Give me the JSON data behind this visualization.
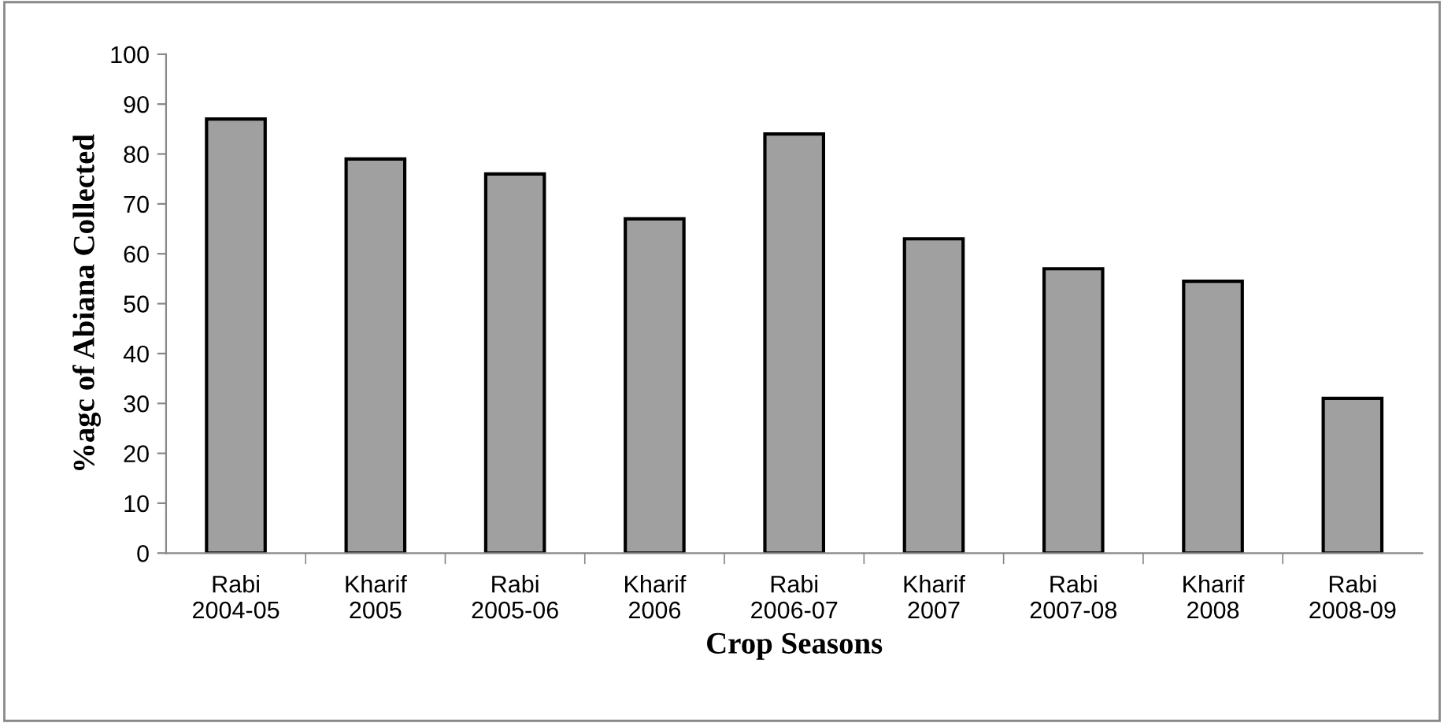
{
  "chart_data": {
    "type": "bar",
    "xlabel": "Crop Seasons",
    "ylabel": "%agc of Abiana Collected",
    "categories": [
      "Rabi\n2004-05",
      "Kharif\n2005",
      "Rabi\n2005-06",
      "Kharif\n2006",
      "Rabi\n2006-07",
      "Kharif\n2007",
      "Rabi\n2007-08",
      "Kharif\n2008",
      "Rabi\n2008-09"
    ],
    "values": [
      87,
      79,
      76,
      67,
      84,
      63,
      57,
      54.5,
      31
    ],
    "color": "#a0a0a0",
    "ylim": [
      0,
      100
    ],
    "yticks": [
      0,
      10,
      20,
      30,
      40,
      50,
      60,
      70,
      80,
      90,
      100
    ],
    "grid": false,
    "legend": false
  }
}
